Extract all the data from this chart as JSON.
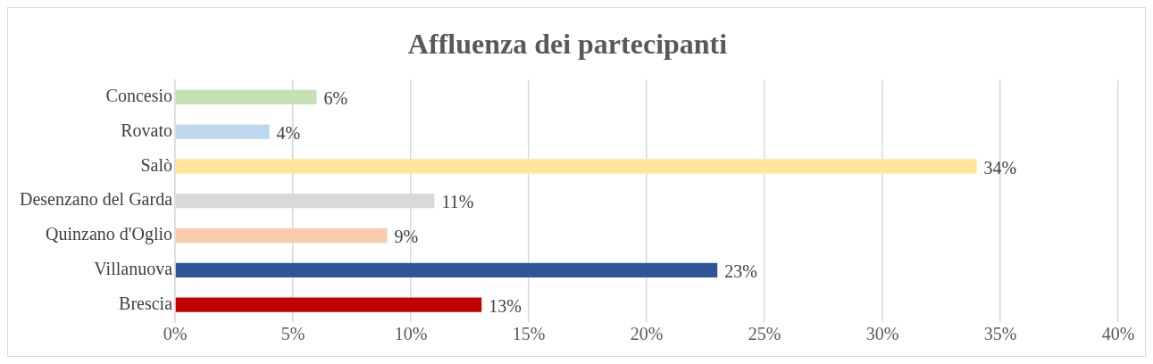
{
  "chart_data": {
    "type": "bar",
    "orientation": "horizontal",
    "title": "Affluenza dei partecipanti",
    "categories": [
      "Concesio",
      "Rovato",
      "Salò",
      "Desenzano del Garda",
      "Quinzano d'Oglio",
      "Villanuova",
      "Brescia"
    ],
    "values": [
      6,
      4,
      34,
      11,
      9,
      23,
      13
    ],
    "colors": [
      "#c5e0b4",
      "#bdd7ee",
      "#ffe699",
      "#d9d9d9",
      "#f8cbad",
      "#2f5597",
      "#c00000"
    ],
    "value_labels": [
      "6%",
      "4%",
      "34%",
      "11%",
      "9%",
      "23%",
      "13%"
    ],
    "xlim": [
      0,
      40
    ],
    "xticks": [
      {
        "value": 0,
        "label": "0%"
      },
      {
        "value": 5,
        "label": "5%"
      },
      {
        "value": 10,
        "label": "10%"
      },
      {
        "value": 15,
        "label": "15%"
      },
      {
        "value": 20,
        "label": "20%"
      },
      {
        "value": 25,
        "label": "25%"
      },
      {
        "value": 30,
        "label": "30%"
      },
      {
        "value": 35,
        "label": "35%"
      },
      {
        "value": 40,
        "label": "40%"
      }
    ],
    "grid": "x",
    "legend": false
  }
}
